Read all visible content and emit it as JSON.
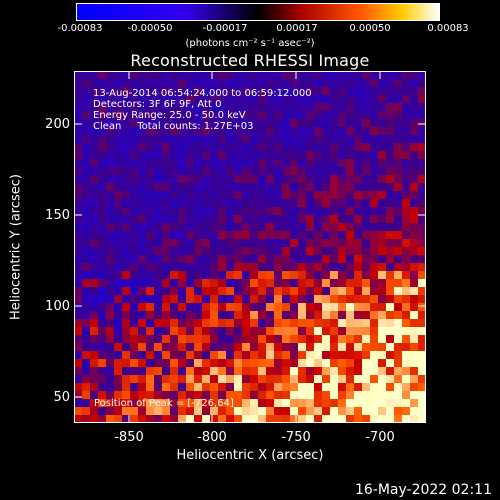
{
  "colorbar": {
    "tick_labels": [
      "-0.00083",
      "-0.00050",
      "-0.00017",
      "0.00017",
      "0.00050",
      "0.00083"
    ],
    "units": "(photons cm⁻² s⁻¹ asec⁻²)"
  },
  "title": "Reconstructed RHESSI Image",
  "info": {
    "line1": "13-Aug-2014 06:54:24.000 to 06:59:12.000",
    "line2": "Detectors: 3F 6F 9F, Att 0",
    "line3": "Energy Range: 25.0 - 50.0 keV",
    "line4": "Clean     Total counts: 1.27E+03"
  },
  "peak_label": "Position of Peak = [-726,64]",
  "axes": {
    "xlabel": "Heliocentric X (arcsec)",
    "ylabel": "Heliocentric Y (arcsec)",
    "xticks": [
      "-850",
      "-800",
      "-750",
      "-700"
    ],
    "yticks": [
      "200",
      "150",
      "100",
      "50"
    ]
  },
  "datestamp": "16-May-2022 02:11",
  "colors": {
    "background": "#000000",
    "foreground": "#ffffff"
  }
}
